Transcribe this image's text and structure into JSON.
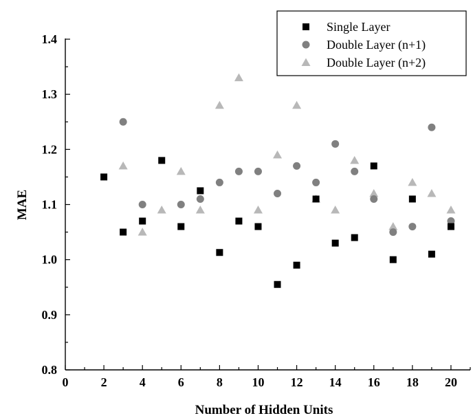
{
  "chart_data": {
    "type": "scatter",
    "title": "",
    "xlabel": "Number of Hidden Units",
    "ylabel": "MAE",
    "xlim": [
      0,
      21
    ],
    "ylim": [
      0.8,
      1.4
    ],
    "x_ticks": [
      0,
      2,
      4,
      6,
      8,
      10,
      12,
      14,
      16,
      18,
      20
    ],
    "y_ticks": [
      0.8,
      0.9,
      1.0,
      1.1,
      1.2,
      1.3,
      1.4
    ],
    "y_tick_labels": [
      "0.8",
      "0.9",
      "1.0",
      "1.1",
      "1.2",
      "1.3",
      "1.4"
    ],
    "grid": false,
    "legend_position": "top-right",
    "series": [
      {
        "name": "Single Layer",
        "marker": "square",
        "color": "#000000",
        "x": [
          2,
          3,
          4,
          5,
          6,
          7,
          8,
          9,
          10,
          11,
          12,
          13,
          14,
          15,
          16,
          17,
          18,
          19,
          20
        ],
        "y": [
          1.15,
          1.05,
          1.07,
          1.18,
          1.06,
          1.125,
          1.013,
          1.07,
          1.06,
          0.955,
          0.99,
          1.11,
          1.03,
          1.04,
          1.17,
          1.0,
          1.11,
          1.01,
          1.06
        ]
      },
      {
        "name": "Double Layer (n+1)",
        "marker": "circle",
        "color": "#808080",
        "x": [
          3,
          4,
          6,
          7,
          8,
          9,
          10,
          11,
          12,
          13,
          14,
          15,
          16,
          17,
          18,
          19,
          20
        ],
        "y": [
          1.25,
          1.1,
          1.1,
          1.11,
          1.14,
          1.16,
          1.16,
          1.12,
          1.17,
          1.14,
          1.21,
          1.16,
          1.11,
          1.05,
          1.06,
          1.24,
          1.07
        ]
      },
      {
        "name": "Double Layer (n+2)",
        "marker": "triangle",
        "color": "#b8b8b8",
        "x": [
          3,
          4,
          5,
          6,
          7,
          8,
          9,
          10,
          11,
          12,
          13,
          14,
          15,
          16,
          17,
          18,
          19,
          20
        ],
        "y": [
          1.17,
          1.05,
          1.09,
          1.16,
          1.09,
          1.28,
          1.33,
          1.09,
          1.19,
          1.28,
          1.11,
          1.09,
          1.18,
          1.12,
          1.06,
          1.14,
          1.12,
          1.09
        ]
      }
    ]
  }
}
